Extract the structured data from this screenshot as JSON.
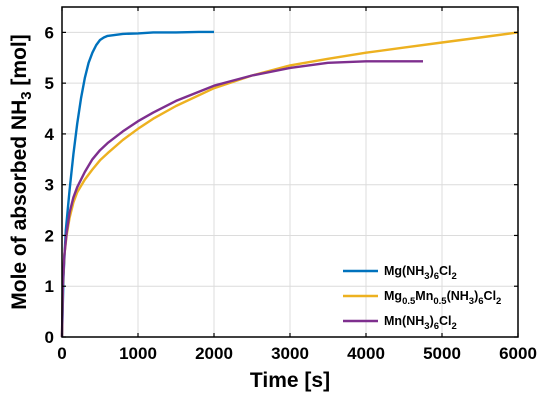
{
  "chart_data": {
    "type": "line",
    "title": "",
    "xlabel": "Time [s]",
    "ylabel": {
      "main": "Mole of absorbed NH",
      "sub": "3",
      "tail": " [mol]"
    },
    "xlim": [
      0,
      6000
    ],
    "ylim": [
      0,
      6.5
    ],
    "xticks": [
      0,
      1000,
      2000,
      3000,
      4000,
      5000,
      6000
    ],
    "yticks": [
      0,
      1,
      2,
      3,
      4,
      5,
      6
    ],
    "grid": true,
    "legend_position": "bottom-right",
    "series": [
      {
        "name": [
          {
            "t": "Mg(NH",
            "s": ""
          },
          {
            "t": "3",
            "s": "sub"
          },
          {
            "t": ")",
            "s": ""
          },
          {
            "t": "6",
            "s": "sub"
          },
          {
            "t": "Cl",
            "s": ""
          },
          {
            "t": "2",
            "s": "sub"
          }
        ],
        "color": "#0072BD",
        "points": [
          [
            0,
            0
          ],
          [
            20,
            1.2
          ],
          [
            50,
            2.1
          ],
          [
            100,
            2.9
          ],
          [
            150,
            3.6
          ],
          [
            200,
            4.2
          ],
          [
            250,
            4.7
          ],
          [
            300,
            5.1
          ],
          [
            350,
            5.4
          ],
          [
            400,
            5.6
          ],
          [
            450,
            5.75
          ],
          [
            500,
            5.85
          ],
          [
            550,
            5.9
          ],
          [
            600,
            5.93
          ],
          [
            700,
            5.95
          ],
          [
            800,
            5.97
          ],
          [
            1000,
            5.98
          ],
          [
            1200,
            6.0
          ],
          [
            1500,
            6.0
          ],
          [
            1800,
            6.01
          ],
          [
            2000,
            6.01
          ]
        ]
      },
      {
        "name": [
          {
            "t": "Mg",
            "s": ""
          },
          {
            "t": "0.5",
            "s": "sub"
          },
          {
            "t": "Mn",
            "s": ""
          },
          {
            "t": "0.5",
            "s": "sub"
          },
          {
            "t": "(NH",
            "s": ""
          },
          {
            "t": "3",
            "s": "sub"
          },
          {
            "t": ")",
            "s": ""
          },
          {
            "t": "6",
            "s": "sub"
          },
          {
            "t": "Cl",
            "s": ""
          },
          {
            "t": "2",
            "s": "sub"
          }
        ],
        "color": "#EDB120",
        "points": [
          [
            0,
            0
          ],
          [
            10,
            1.0
          ],
          [
            30,
            1.6
          ],
          [
            60,
            2.0
          ],
          [
            100,
            2.35
          ],
          [
            150,
            2.65
          ],
          [
            200,
            2.85
          ],
          [
            300,
            3.1
          ],
          [
            400,
            3.3
          ],
          [
            500,
            3.48
          ],
          [
            600,
            3.62
          ],
          [
            800,
            3.88
          ],
          [
            1000,
            4.1
          ],
          [
            1200,
            4.3
          ],
          [
            1500,
            4.55
          ],
          [
            2000,
            4.9
          ],
          [
            2500,
            5.15
          ],
          [
            3000,
            5.35
          ],
          [
            3500,
            5.48
          ],
          [
            4000,
            5.6
          ],
          [
            4500,
            5.7
          ],
          [
            5000,
            5.8
          ],
          [
            5500,
            5.9
          ],
          [
            6000,
            6.0
          ]
        ]
      },
      {
        "name": [
          {
            "t": "Mn(NH",
            "s": ""
          },
          {
            "t": "3",
            "s": "sub"
          },
          {
            "t": ")",
            "s": ""
          },
          {
            "t": "6",
            "s": "sub"
          },
          {
            "t": "Cl",
            "s": ""
          },
          {
            "t": "2",
            "s": "sub"
          }
        ],
        "color": "#7E2F8E",
        "points": [
          [
            0,
            0
          ],
          [
            10,
            1.0
          ],
          [
            30,
            1.6
          ],
          [
            60,
            2.05
          ],
          [
            100,
            2.45
          ],
          [
            150,
            2.75
          ],
          [
            200,
            2.95
          ],
          [
            300,
            3.25
          ],
          [
            400,
            3.5
          ],
          [
            500,
            3.68
          ],
          [
            600,
            3.82
          ],
          [
            800,
            4.05
          ],
          [
            1000,
            4.25
          ],
          [
            1200,
            4.42
          ],
          [
            1500,
            4.65
          ],
          [
            2000,
            4.95
          ],
          [
            2500,
            5.15
          ],
          [
            3000,
            5.3
          ],
          [
            3500,
            5.4
          ],
          [
            4000,
            5.43
          ],
          [
            4500,
            5.43
          ],
          [
            4750,
            5.43
          ]
        ]
      }
    ]
  }
}
